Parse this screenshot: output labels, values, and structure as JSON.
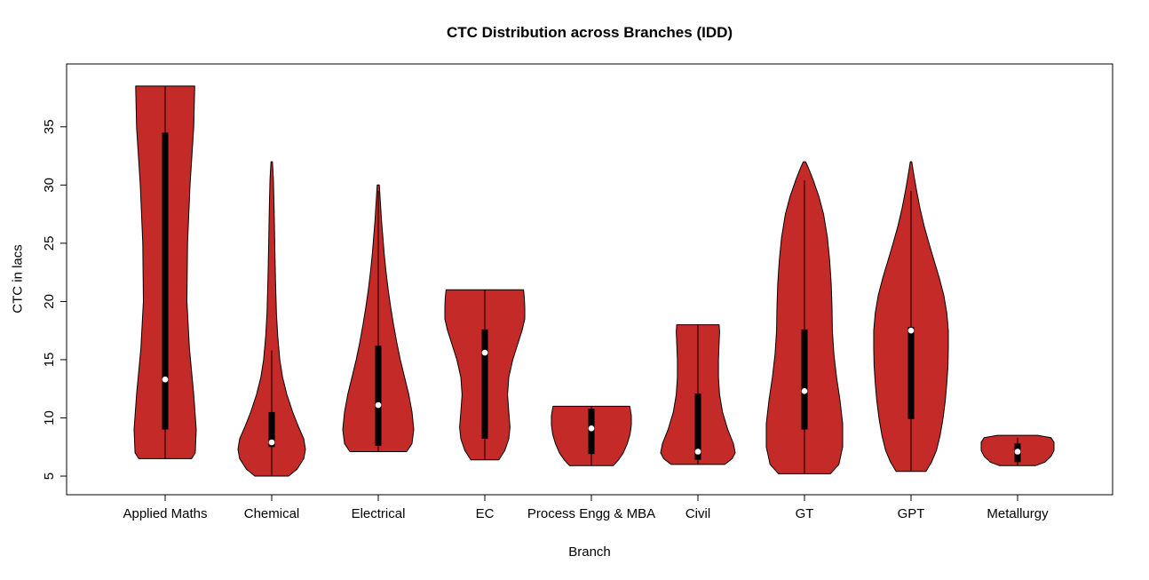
{
  "page": {
    "background": "#FFFFFF"
  },
  "chart_data": {
    "type": "violin",
    "title": "CTC Distribution across Branches (IDD)",
    "xlabel": "Branch",
    "ylabel": "CTC in lacs",
    "ylim": [
      3.4,
      40.4
    ],
    "yticks": [
      5,
      10,
      15,
      20,
      25,
      30,
      35
    ],
    "grid": false,
    "legend": "none",
    "violin_fill": "#C42B28",
    "violin_stroke": "#000000",
    "box_color": "#000000",
    "median_dot_color": "#FFFFFF",
    "categories": [
      "Applied Maths",
      "Chemical",
      "Electrical",
      "EC",
      "Process Engg & MBA",
      "Civil",
      "GT",
      "GPT",
      "Metallurgy"
    ],
    "series": [
      {
        "name": "Applied Maths",
        "min": 6.5,
        "max": 38.5,
        "q1": 9.0,
        "median": 13.3,
        "q3": 34.5,
        "whisker_low": 6.5,
        "whisker_high": 38.5,
        "halfwidth": 35,
        "profile": [
          [
            6.5,
            0.85
          ],
          [
            7.0,
            0.97
          ],
          [
            9.0,
            1.0
          ],
          [
            12.0,
            0.92
          ],
          [
            16.0,
            0.78
          ],
          [
            20.0,
            0.7
          ],
          [
            25.0,
            0.72
          ],
          [
            30.0,
            0.8
          ],
          [
            35.0,
            0.92
          ],
          [
            38.5,
            0.95
          ]
        ]
      },
      {
        "name": "Chemical",
        "min": 5.0,
        "max": 32.0,
        "q1": 7.5,
        "median": 7.9,
        "q3": 10.5,
        "whisker_low": 5.0,
        "whisker_high": 15.8,
        "halfwidth": 38,
        "profile": [
          [
            5.0,
            0.5
          ],
          [
            5.6,
            0.75
          ],
          [
            6.5,
            0.95
          ],
          [
            7.3,
            1.0
          ],
          [
            8.2,
            0.95
          ],
          [
            9.2,
            0.8
          ],
          [
            10.5,
            0.62
          ],
          [
            12.0,
            0.45
          ],
          [
            13.5,
            0.32
          ],
          [
            15.0,
            0.24
          ],
          [
            17.0,
            0.18
          ],
          [
            19.0,
            0.14
          ],
          [
            22.0,
            0.11
          ],
          [
            25.0,
            0.09
          ],
          [
            28.0,
            0.07
          ],
          [
            30.5,
            0.05
          ],
          [
            32.0,
            0.02
          ]
        ]
      },
      {
        "name": "Electrical",
        "min": 7.1,
        "max": 30.0,
        "q1": 7.6,
        "median": 11.1,
        "q3": 16.2,
        "whisker_low": 7.1,
        "whisker_high": 29.5,
        "halfwidth": 40,
        "profile": [
          [
            7.1,
            0.8
          ],
          [
            7.8,
            0.95
          ],
          [
            9.0,
            1.0
          ],
          [
            10.5,
            0.95
          ],
          [
            12.0,
            0.86
          ],
          [
            13.5,
            0.74
          ],
          [
            15.0,
            0.62
          ],
          [
            16.5,
            0.52
          ],
          [
            18.0,
            0.43
          ],
          [
            19.5,
            0.35
          ],
          [
            21.0,
            0.28
          ],
          [
            22.5,
            0.22
          ],
          [
            24.0,
            0.17
          ],
          [
            25.5,
            0.13
          ],
          [
            27.0,
            0.09
          ],
          [
            28.5,
            0.06
          ],
          [
            30.0,
            0.03
          ]
        ]
      },
      {
        "name": "EC",
        "min": 6.4,
        "max": 21.0,
        "q1": 8.2,
        "median": 15.6,
        "q3": 17.6,
        "whisker_low": 6.4,
        "whisker_high": 21.0,
        "halfwidth": 45,
        "profile": [
          [
            6.4,
            0.35
          ],
          [
            7.2,
            0.5
          ],
          [
            8.2,
            0.6
          ],
          [
            9.2,
            0.63
          ],
          [
            10.5,
            0.6
          ],
          [
            12.0,
            0.57
          ],
          [
            13.5,
            0.6
          ],
          [
            15.0,
            0.7
          ],
          [
            16.3,
            0.82
          ],
          [
            17.5,
            0.93
          ],
          [
            18.5,
            1.0
          ],
          [
            19.5,
            1.0
          ],
          [
            20.3,
            0.99
          ],
          [
            21.0,
            0.97
          ]
        ]
      },
      {
        "name": "Process Engg & MBA",
        "min": 5.9,
        "max": 11.0,
        "q1": 6.9,
        "median": 9.1,
        "q3": 10.8,
        "whisker_low": 5.9,
        "whisker_high": 11.0,
        "halfwidth": 45,
        "profile": [
          [
            5.9,
            0.55
          ],
          [
            6.4,
            0.68
          ],
          [
            7.0,
            0.8
          ],
          [
            7.8,
            0.9
          ],
          [
            8.6,
            0.97
          ],
          [
            9.4,
            1.0
          ],
          [
            10.2,
            1.0
          ],
          [
            11.0,
            0.96
          ]
        ]
      },
      {
        "name": "Civil",
        "min": 6.0,
        "max": 18.0,
        "q1": 6.4,
        "median": 7.1,
        "q3": 12.1,
        "whisker_low": 6.0,
        "whisker_high": 18.0,
        "halfwidth": 42,
        "profile": [
          [
            6.0,
            0.72
          ],
          [
            6.5,
            0.92
          ],
          [
            7.0,
            1.0
          ],
          [
            7.8,
            0.95
          ],
          [
            9.0,
            0.8
          ],
          [
            10.5,
            0.66
          ],
          [
            12.0,
            0.58
          ],
          [
            13.5,
            0.55
          ],
          [
            15.0,
            0.55
          ],
          [
            16.5,
            0.57
          ],
          [
            17.4,
            0.58
          ],
          [
            18.0,
            0.57
          ]
        ]
      },
      {
        "name": "GT",
        "min": 5.2,
        "max": 32.0,
        "q1": 9.0,
        "median": 12.3,
        "q3": 17.6,
        "whisker_low": 5.2,
        "whisker_high": 30.4,
        "halfwidth": 43,
        "profile": [
          [
            5.2,
            0.68
          ],
          [
            6.0,
            0.9
          ],
          [
            7.5,
            1.0
          ],
          [
            9.5,
            1.0
          ],
          [
            11.5,
            0.93
          ],
          [
            13.5,
            0.84
          ],
          [
            15.5,
            0.77
          ],
          [
            17.5,
            0.73
          ],
          [
            19.5,
            0.72
          ],
          [
            21.5,
            0.7
          ],
          [
            23.5,
            0.66
          ],
          [
            25.5,
            0.6
          ],
          [
            27.5,
            0.5
          ],
          [
            29.0,
            0.38
          ],
          [
            30.5,
            0.22
          ],
          [
            31.5,
            0.1
          ],
          [
            32.0,
            0.03
          ]
        ]
      },
      {
        "name": "GPT",
        "min": 5.4,
        "max": 32.0,
        "q1": 9.9,
        "median": 17.5,
        "q3": 17.8,
        "whisker_low": 5.4,
        "whisker_high": 29.5,
        "halfwidth": 42,
        "profile": [
          [
            5.4,
            0.4
          ],
          [
            6.2,
            0.55
          ],
          [
            7.2,
            0.68
          ],
          [
            8.5,
            0.78
          ],
          [
            10.0,
            0.86
          ],
          [
            11.5,
            0.92
          ],
          [
            13.0,
            0.96
          ],
          [
            14.5,
            0.99
          ],
          [
            16.0,
            1.0
          ],
          [
            17.5,
            1.0
          ],
          [
            19.0,
            0.96
          ],
          [
            20.5,
            0.88
          ],
          [
            22.0,
            0.76
          ],
          [
            23.5,
            0.62
          ],
          [
            25.0,
            0.48
          ],
          [
            26.5,
            0.35
          ],
          [
            28.0,
            0.24
          ],
          [
            29.5,
            0.15
          ],
          [
            31.0,
            0.07
          ],
          [
            32.0,
            0.02
          ]
        ]
      },
      {
        "name": "Metallurgy",
        "min": 5.9,
        "max": 8.5,
        "q1": 6.2,
        "median": 7.1,
        "q3": 7.8,
        "whisker_low": 5.9,
        "whisker_high": 8.3,
        "halfwidth": 41,
        "profile": [
          [
            5.9,
            0.5
          ],
          [
            6.2,
            0.75
          ],
          [
            6.7,
            0.92
          ],
          [
            7.2,
            1.0
          ],
          [
            7.9,
            1.0
          ],
          [
            8.3,
            0.92
          ],
          [
            8.5,
            0.55
          ]
        ]
      }
    ]
  }
}
